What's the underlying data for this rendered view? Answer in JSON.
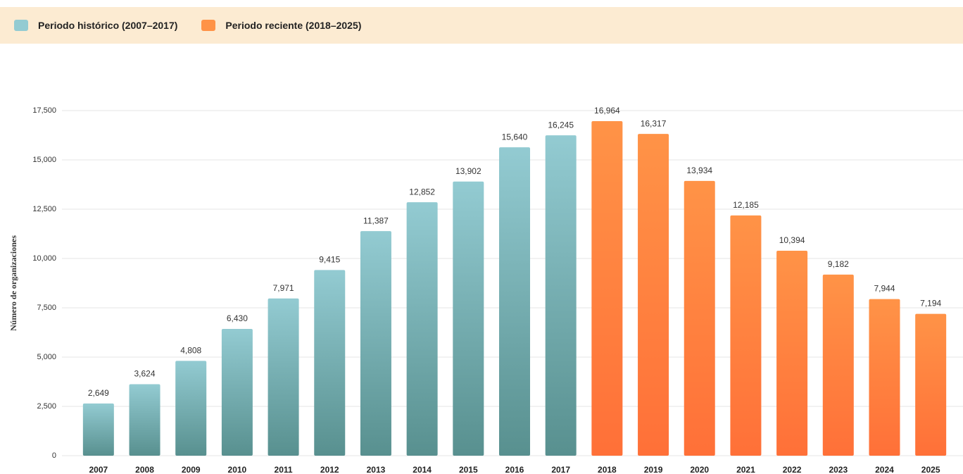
{
  "chart_data": {
    "type": "bar",
    "y_label": "Número de organizaciones",
    "categories": [
      "2007",
      "2008",
      "2009",
      "2010",
      "2011",
      "2012",
      "2013",
      "2014",
      "2015",
      "2016",
      "2017",
      "2018",
      "2019",
      "2020",
      "2021",
      "2022",
      "2023",
      "2024",
      "2025"
    ],
    "series": [
      {
        "name": "Periodo histórico (2007–2017)",
        "color": "#93cbd2",
        "values": [
          2649,
          3624,
          4808,
          6430,
          7971,
          9415,
          11387,
          12852,
          13902,
          15640,
          16245,
          null,
          null,
          null,
          null,
          null,
          null,
          null,
          null
        ],
        "value_labels": [
          "2,649",
          "3,624",
          "4,808",
          "6,430",
          "7,971",
          "9,415",
          "11,387",
          "12,852",
          "13,902",
          "15,640",
          "16,245",
          null,
          null,
          null,
          null,
          null,
          null,
          null,
          null
        ]
      },
      {
        "name": "Periodo reciente (2018–2025)",
        "color": "#ff9347",
        "values": [
          null,
          null,
          null,
          null,
          null,
          null,
          null,
          null,
          null,
          null,
          null,
          16964,
          16317,
          13934,
          12185,
          10394,
          9182,
          7944,
          7194
        ],
        "value_labels": [
          null,
          null,
          null,
          null,
          null,
          null,
          null,
          null,
          null,
          null,
          null,
          "16,964",
          "16,317",
          "13,934",
          "12,185",
          "10,394",
          "9,182",
          "7,944",
          "7,194"
        ]
      }
    ],
    "ylim": [
      0,
      17500
    ],
    "yticks": [
      0,
      {
        "value": 2500,
        "label": "2,500"
      },
      {
        "value": 5000,
        "label": "5,000"
      },
      {
        "value": 7500,
        "label": "7,500"
      },
      {
        "value": 10000,
        "label": "10,000"
      },
      {
        "value": 12500,
        "label": "12,500"
      },
      {
        "value": 15000,
        "label": "15,000"
      },
      {
        "value": 17500,
        "label": "17,500"
      }
    ],
    "grid": true,
    "legend": "top"
  }
}
